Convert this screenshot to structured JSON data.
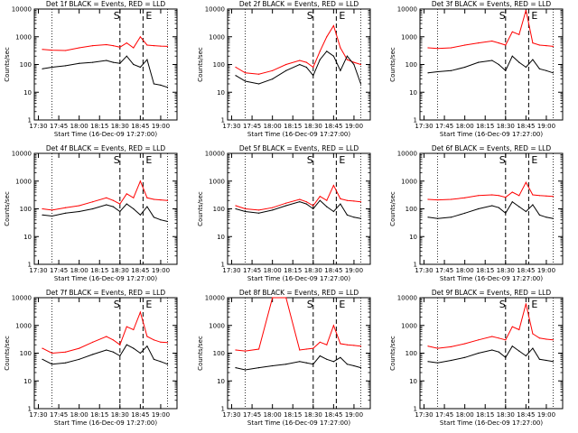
{
  "figure": {
    "xtick_labels": [
      "17:30",
      "17:45",
      "18:00",
      "18:15",
      "18:30",
      "18:45",
      "19:00"
    ],
    "ytick_labels": [
      "1",
      "10",
      "100",
      "1000",
      "10000"
    ],
    "xlabel": "Start Time (16-Dec-09 17:27:00)",
    "ylabel": "Counts/sec",
    "marker_S": "S",
    "marker_E": "E",
    "colors": {
      "black_series": "#000000",
      "red_series": "#ff0000",
      "axes": "#000000"
    }
  },
  "chart_data": [
    {
      "type": "line",
      "title": "Det 1f BLACK = Events, RED = LLD",
      "xlabel": "Start Time (16-Dec-09 17:27:00)",
      "ylabel": "Counts/sec",
      "xlim": [
        "17:27",
        "19:12"
      ],
      "ylim": [
        1,
        10000
      ],
      "log_y": true,
      "marker_S": "18:30",
      "marker_E": "18:47",
      "dotted_lines": [
        "17:40",
        "19:05"
      ],
      "series": [
        {
          "name": "BLACK = Events",
          "x": [
            "17:33",
            "17:40",
            "17:50",
            "18:00",
            "18:10",
            "18:20",
            "18:25",
            "18:30",
            "18:35",
            "18:40",
            "18:45",
            "18:50",
            "18:55",
            "19:00",
            "19:05"
          ],
          "values": [
            70,
            80,
            90,
            110,
            120,
            140,
            120,
            110,
            200,
            100,
            80,
            150,
            20,
            18,
            15
          ]
        },
        {
          "name": "RED = LLD",
          "x": [
            "17:33",
            "17:40",
            "17:50",
            "18:00",
            "18:10",
            "18:20",
            "18:25",
            "18:30",
            "18:35",
            "18:40",
            "18:45",
            "18:50",
            "18:55",
            "19:00",
            "19:05"
          ],
          "values": [
            350,
            330,
            320,
            400,
            480,
            520,
            480,
            420,
            600,
            400,
            1000,
            500,
            480,
            460,
            450
          ]
        }
      ]
    },
    {
      "type": "line",
      "title": "Det 2f BLACK = Events, RED = LLD",
      "xlabel": "Start Time (16-Dec-09 17:27:00)",
      "ylabel": "Counts/sec",
      "xlim": [
        "17:27",
        "19:12"
      ],
      "ylim": [
        1,
        10000
      ],
      "log_y": true,
      "marker_S": "18:30",
      "marker_E": "18:47",
      "dotted_lines": [
        "17:40",
        "19:05"
      ],
      "series": [
        {
          "name": "BLACK = Events",
          "x": [
            "17:33",
            "17:40",
            "17:50",
            "18:00",
            "18:10",
            "18:20",
            "18:25",
            "18:30",
            "18:35",
            "18:40",
            "18:45",
            "18:50",
            "18:55",
            "19:00",
            "19:05"
          ],
          "values": [
            40,
            25,
            20,
            30,
            60,
            100,
            80,
            40,
            150,
            300,
            200,
            60,
            200,
            100,
            20
          ]
        },
        {
          "name": "RED = LLD",
          "x": [
            "17:33",
            "17:40",
            "17:50",
            "18:00",
            "18:10",
            "18:20",
            "18:25",
            "18:30",
            "18:35",
            "18:40",
            "18:45",
            "18:50",
            "18:55",
            "19:00",
            "19:05"
          ],
          "values": [
            80,
            50,
            45,
            60,
            100,
            140,
            120,
            80,
            300,
            1000,
            2500,
            400,
            150,
            120,
            100
          ]
        }
      ]
    },
    {
      "type": "line",
      "title": "Det 3f BLACK = Events, RED = LLD",
      "xlabel": "Start Time (16-Dec-09 17:27:00)",
      "ylabel": "Counts/sec",
      "xlim": [
        "17:27",
        "19:12"
      ],
      "ylim": [
        1,
        10000
      ],
      "log_y": true,
      "marker_S": "18:30",
      "marker_E": "18:47",
      "dotted_lines": [
        "17:40",
        "19:05"
      ],
      "series": [
        {
          "name": "BLACK = Events",
          "x": [
            "17:33",
            "17:40",
            "17:50",
            "18:00",
            "18:10",
            "18:20",
            "18:25",
            "18:30",
            "18:35",
            "18:40",
            "18:45",
            "18:50",
            "18:55",
            "19:00",
            "19:05"
          ],
          "values": [
            50,
            55,
            60,
            80,
            120,
            140,
            100,
            60,
            200,
            120,
            80,
            150,
            70,
            60,
            50
          ]
        },
        {
          "name": "RED = LLD",
          "x": [
            "17:33",
            "17:40",
            "17:50",
            "18:00",
            "18:10",
            "18:20",
            "18:25",
            "18:30",
            "18:35",
            "18:40",
            "18:45",
            "18:50",
            "18:55",
            "19:00",
            "19:05"
          ],
          "values": [
            400,
            380,
            400,
            500,
            600,
            700,
            600,
            500,
            1500,
            1200,
            9000,
            600,
            500,
            480,
            450
          ]
        }
      ]
    },
    {
      "type": "line",
      "title": "Det 4f BLACK = Events, RED = LLD",
      "xlabel": "Start Time (16-Dec-09 17:27:00)",
      "ylabel": "Counts/sec",
      "xlim": [
        "17:27",
        "19:12"
      ],
      "ylim": [
        1,
        10000
      ],
      "log_y": true,
      "marker_S": "18:30",
      "marker_E": "18:47",
      "dotted_lines": [
        "17:40",
        "19:05"
      ],
      "series": [
        {
          "name": "BLACK = Events",
          "x": [
            "17:33",
            "17:40",
            "17:50",
            "18:00",
            "18:10",
            "18:20",
            "18:25",
            "18:30",
            "18:35",
            "18:40",
            "18:45",
            "18:50",
            "18:55",
            "19:00",
            "19:05"
          ],
          "values": [
            60,
            55,
            70,
            80,
            100,
            140,
            120,
            80,
            150,
            100,
            60,
            120,
            50,
            40,
            35
          ]
        },
        {
          "name": "RED = LLD",
          "x": [
            "17:33",
            "17:40",
            "17:50",
            "18:00",
            "18:10",
            "18:20",
            "18:25",
            "18:30",
            "18:35",
            "18:40",
            "18:45",
            "18:50",
            "18:55",
            "19:00",
            "19:05"
          ],
          "values": [
            100,
            90,
            110,
            130,
            180,
            250,
            200,
            150,
            350,
            250,
            1000,
            250,
            220,
            210,
            200
          ]
        }
      ]
    },
    {
      "type": "line",
      "title": "Det 5f BLACK = Events, RED = LLD",
      "xlabel": "Start Time (16-Dec-09 17:27:00)",
      "ylabel": "Counts/sec",
      "xlim": [
        "17:27",
        "19:12"
      ],
      "ylim": [
        1,
        10000
      ],
      "log_y": true,
      "marker_S": "18:30",
      "marker_E": "18:47",
      "dotted_lines": [
        "17:40",
        "19:05"
      ],
      "series": [
        {
          "name": "BLACK = Events",
          "x": [
            "17:33",
            "17:40",
            "17:50",
            "18:00",
            "18:10",
            "18:20",
            "18:25",
            "18:30",
            "18:35",
            "18:40",
            "18:45",
            "18:50",
            "18:55",
            "19:00",
            "19:05"
          ],
          "values": [
            100,
            80,
            70,
            90,
            130,
            180,
            150,
            100,
            200,
            120,
            80,
            150,
            60,
            50,
            45
          ]
        },
        {
          "name": "RED = LLD",
          "x": [
            "17:33",
            "17:40",
            "17:50",
            "18:00",
            "18:10",
            "18:20",
            "18:25",
            "18:30",
            "18:35",
            "18:40",
            "18:45",
            "18:50",
            "18:55",
            "19:00",
            "19:05"
          ],
          "values": [
            130,
            100,
            90,
            110,
            160,
            220,
            180,
            130,
            280,
            200,
            700,
            230,
            200,
            190,
            180
          ]
        }
      ]
    },
    {
      "type": "line",
      "title": "Det 6f BLACK = Events, RED = LLD",
      "xlabel": "Start Time (16-Dec-09 17:27:00)",
      "ylabel": "Counts/sec",
      "xlim": [
        "17:27",
        "19:12"
      ],
      "ylim": [
        1,
        10000
      ],
      "log_y": true,
      "marker_S": "18:30",
      "marker_E": "18:47",
      "dotted_lines": [
        "17:40",
        "19:05"
      ],
      "series": [
        {
          "name": "BLACK = Events",
          "x": [
            "17:33",
            "17:40",
            "17:50",
            "18:00",
            "18:10",
            "18:20",
            "18:25",
            "18:30",
            "18:35",
            "18:40",
            "18:45",
            "18:50",
            "18:55",
            "19:00",
            "19:05"
          ],
          "values": [
            50,
            45,
            50,
            70,
            100,
            130,
            110,
            70,
            180,
            120,
            80,
            140,
            60,
            50,
            45
          ]
        },
        {
          "name": "RED = LLD",
          "x": [
            "17:33",
            "17:40",
            "17:50",
            "18:00",
            "18:10",
            "18:20",
            "18:25",
            "18:30",
            "18:35",
            "18:40",
            "18:45",
            "18:50",
            "18:55",
            "19:00",
            "19:05"
          ],
          "values": [
            220,
            210,
            220,
            250,
            300,
            320,
            300,
            260,
            400,
            300,
            900,
            320,
            300,
            290,
            280
          ]
        }
      ]
    },
    {
      "type": "line",
      "title": "Det 7f BLACK = Events, RED = LLD",
      "xlabel": "Start Time (16-Dec-09 17:27:00)",
      "ylabel": "Counts/sec",
      "xlim": [
        "17:27",
        "19:12"
      ],
      "ylim": [
        1,
        10000
      ],
      "log_y": true,
      "marker_S": "18:30",
      "marker_E": "18:47",
      "dotted_lines": [
        "17:40",
        "19:05"
      ],
      "series": [
        {
          "name": "BLACK = Events",
          "x": [
            "17:33",
            "17:40",
            "17:50",
            "18:00",
            "18:10",
            "18:20",
            "18:25",
            "18:30",
            "18:35",
            "18:40",
            "18:45",
            "18:50",
            "18:55",
            "19:00",
            "19:05"
          ],
          "values": [
            60,
            40,
            45,
            60,
            90,
            130,
            110,
            80,
            200,
            150,
            100,
            180,
            60,
            50,
            40
          ]
        },
        {
          "name": "RED = LLD",
          "x": [
            "17:33",
            "17:40",
            "17:50",
            "18:00",
            "18:10",
            "18:20",
            "18:25",
            "18:30",
            "18:35",
            "18:40",
            "18:45",
            "18:50",
            "18:55",
            "19:00",
            "19:05"
          ],
          "values": [
            150,
            100,
            110,
            150,
            250,
            400,
            300,
            200,
            900,
            700,
            3000,
            400,
            300,
            250,
            240
          ]
        }
      ]
    },
    {
      "type": "line",
      "title": "Det 8f BLACK = Events, RED = LLD",
      "xlabel": "Start Time (16-Dec-09 17:27:00)",
      "ylabel": "Counts/sec",
      "xlim": [
        "17:27",
        "19:12"
      ],
      "ylim": [
        1,
        10000
      ],
      "log_y": true,
      "marker_S": "18:30",
      "marker_E": "18:47",
      "dotted_lines": [
        "17:40",
        "19:05"
      ],
      "series": [
        {
          "name": "BLACK = Events",
          "x": [
            "17:33",
            "17:40",
            "17:50",
            "18:00",
            "18:10",
            "18:20",
            "18:25",
            "18:30",
            "18:35",
            "18:40",
            "18:45",
            "18:50",
            "18:55",
            "19:00",
            "19:05"
          ],
          "values": [
            30,
            25,
            30,
            35,
            40,
            50,
            45,
            40,
            80,
            60,
            50,
            70,
            40,
            35,
            30
          ]
        },
        {
          "name": "RED = LLD",
          "x": [
            "17:33",
            "17:40",
            "17:50",
            "18:00",
            "18:10",
            "18:20",
            "18:25",
            "18:30",
            "18:35",
            "18:40",
            "18:45",
            "18:50",
            "18:55",
            "19:00",
            "19:05"
          ],
          "values": [
            130,
            120,
            140,
            10000,
            10000,
            130,
            140,
            150,
            250,
            200,
            1000,
            220,
            200,
            190,
            180
          ]
        }
      ]
    },
    {
      "type": "line",
      "title": "Det 9f BLACK = Events, RED = LLD",
      "xlabel": "Start Time (16-Dec-09 17:27:00)",
      "ylabel": "Counts/sec",
      "xlim": [
        "17:27",
        "19:12"
      ],
      "ylim": [
        1,
        10000
      ],
      "log_y": true,
      "marker_S": "18:30",
      "marker_E": "18:47",
      "dotted_lines": [
        "17:40",
        "19:05"
      ],
      "series": [
        {
          "name": "BLACK = Events",
          "x": [
            "17:33",
            "17:40",
            "17:50",
            "18:00",
            "18:10",
            "18:20",
            "18:25",
            "18:30",
            "18:35",
            "18:40",
            "18:45",
            "18:50",
            "18:55",
            "19:00",
            "19:05"
          ],
          "values": [
            50,
            45,
            55,
            70,
            100,
            130,
            110,
            70,
            180,
            120,
            80,
            150,
            60,
            55,
            50
          ]
        },
        {
          "name": "RED = LLD",
          "x": [
            "17:33",
            "17:40",
            "17:50",
            "18:00",
            "18:10",
            "18:20",
            "18:25",
            "18:30",
            "18:35",
            "18:40",
            "18:45",
            "18:50",
            "18:55",
            "19:00",
            "19:05"
          ],
          "values": [
            180,
            150,
            170,
            220,
            300,
            400,
            350,
            300,
            900,
            700,
            6000,
            500,
            350,
            320,
            300
          ]
        }
      ]
    }
  ]
}
